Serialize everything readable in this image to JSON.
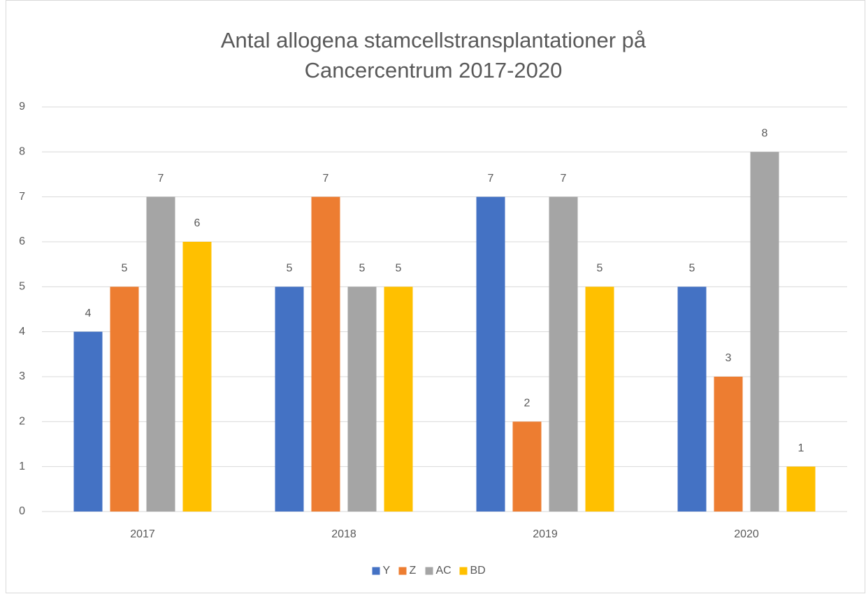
{
  "chart_data": {
    "type": "bar",
    "title": "Antal allogena stamcellstransplantationer på Cancercentrum 2017-2020",
    "categories": [
      "2017",
      "2018",
      "2019",
      "2020"
    ],
    "series": [
      {
        "name": "Y",
        "color": "#4472c4",
        "values": [
          4,
          5,
          7,
          5
        ]
      },
      {
        "name": "Z",
        "color": "#ed7d31",
        "values": [
          5,
          7,
          2,
          3
        ]
      },
      {
        "name": "AC",
        "color": "#a5a5a5",
        "values": [
          7,
          5,
          7,
          8
        ]
      },
      {
        "name": "BD",
        "color": "#ffc000",
        "values": [
          6,
          5,
          5,
          1
        ]
      }
    ],
    "ylim": [
      0,
      9
    ],
    "yticks": [
      0,
      1,
      2,
      3,
      4,
      5,
      6,
      7,
      8,
      9
    ],
    "grid": true,
    "legend": "bottom"
  }
}
